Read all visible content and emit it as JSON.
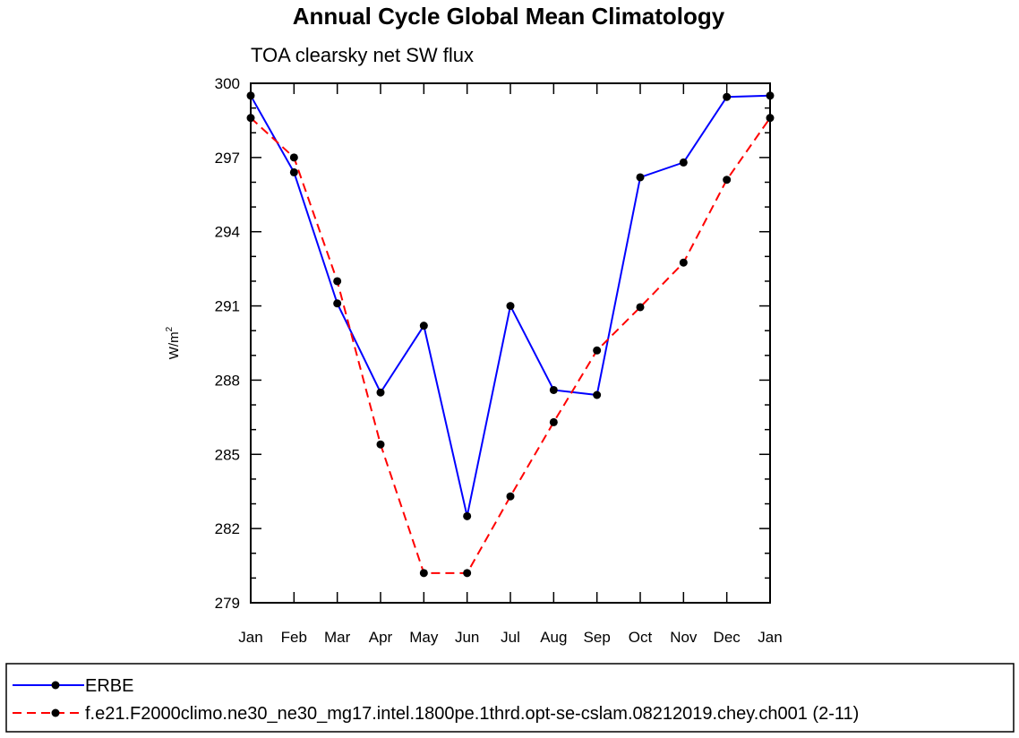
{
  "chart_data": {
    "type": "line",
    "title": "Annual Cycle Global Mean Climatology",
    "subtitle": "TOA clearsky net SW flux",
    "ylabel": "W/m",
    "ylabel_sup": "2",
    "categories": [
      "Jan",
      "Feb",
      "Mar",
      "Apr",
      "May",
      "Jun",
      "Jul",
      "Aug",
      "Sep",
      "Oct",
      "Nov",
      "Dec",
      "Jan"
    ],
    "ylim": [
      279,
      300
    ],
    "yticks": [
      279,
      282,
      285,
      288,
      291,
      294,
      297,
      300
    ],
    "series": [
      {
        "name": "ERBE",
        "color": "#0000ff",
        "dash": "solid",
        "values": [
          299.5,
          296.4,
          291.1,
          287.5,
          290.2,
          282.5,
          291.0,
          287.6,
          287.4,
          296.2,
          296.8,
          299.45,
          299.5
        ]
      },
      {
        "name": "f.e21.F2000climo.ne30_ne30_mg17.intel.1800pe.1thrd.opt-se-cslam.08212019.chey.ch001 (2-11)",
        "color": "#ff0000",
        "dash": "dashed",
        "values": [
          298.6,
          297.0,
          292.0,
          285.4,
          280.2,
          280.2,
          283.3,
          286.3,
          289.2,
          290.95,
          292.75,
          296.1,
          298.6
        ]
      }
    ]
  }
}
